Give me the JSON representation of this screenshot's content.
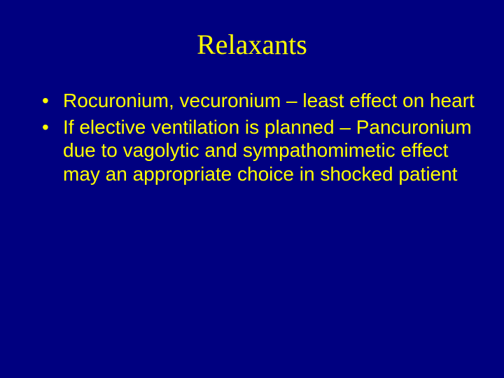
{
  "slide": {
    "background_color": "#000080",
    "text_color": "#ffff00",
    "title": "Relaxants",
    "title_fontsize": 40,
    "title_font_family": "Times New Roman",
    "body_fontsize": 28,
    "body_font_family": "Arial",
    "bullets": [
      "Rocuronium, vecuronium – least effect on heart",
      "If elective ventilation is planned – Pancuronium due to vagolytic and sympathomimetic effect  may an appropriate choice in shocked patient"
    ]
  }
}
